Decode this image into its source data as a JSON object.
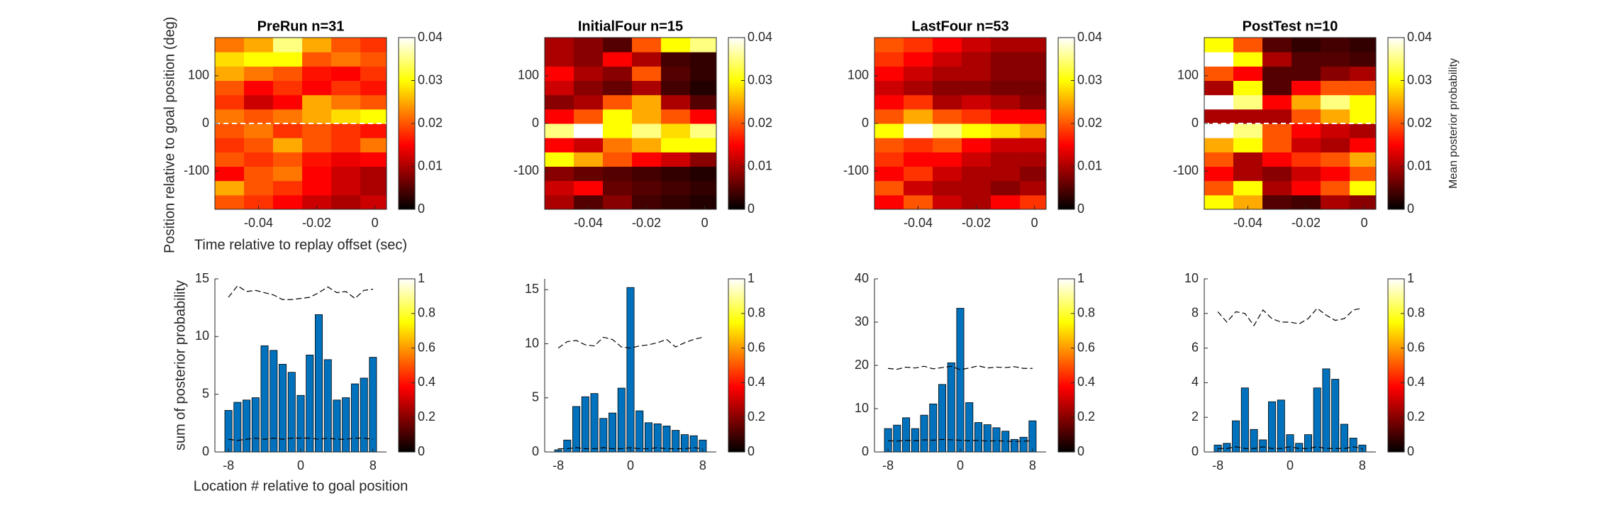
{
  "chart_data": [
    {
      "type": "heatmap",
      "title": "PreRun n=31",
      "xlabel": "Time relative to replay offset (sec)",
      "ylabel": "Position relative to goal position (deg)",
      "xlim": [
        -0.055,
        0.004
      ],
      "ylim": [
        -180,
        180
      ],
      "xticks": [
        -0.04,
        -0.02,
        0
      ],
      "yticks": [
        -100,
        0,
        100
      ],
      "reference_line": 0,
      "x": [
        -0.05,
        -0.04,
        -0.03,
        -0.02,
        -0.01,
        0
      ],
      "y": [
        -165,
        -135,
        -105,
        -75,
        -45,
        -15,
        15,
        45,
        75,
        105,
        135,
        165
      ],
      "z": [
        [
          0.02,
          0.018,
          0.015,
          0.012,
          0.01,
          0.012
        ],
        [
          0.025,
          0.02,
          0.018,
          0.015,
          0.012,
          0.01
        ],
        [
          0.015,
          0.02,
          0.022,
          0.015,
          0.012,
          0.01
        ],
        [
          0.02,
          0.018,
          0.02,
          0.016,
          0.014,
          0.015
        ],
        [
          0.018,
          0.02,
          0.025,
          0.02,
          0.018,
          0.022
        ],
        [
          0.02,
          0.022,
          0.018,
          0.02,
          0.018,
          0.016
        ],
        [
          0.022,
          0.02,
          0.022,
          0.025,
          0.028,
          0.03
        ],
        [
          0.018,
          0.012,
          0.015,
          0.025,
          0.022,
          0.02
        ],
        [
          0.02,
          0.015,
          0.018,
          0.015,
          0.018,
          0.016
        ],
        [
          0.025,
          0.022,
          0.02,
          0.016,
          0.015,
          0.018
        ],
        [
          0.028,
          0.03,
          0.03,
          0.02,
          0.022,
          0.02
        ],
        [
          0.022,
          0.025,
          0.035,
          0.025,
          0.02,
          0.018
        ]
      ],
      "zlim": [
        0,
        0.04
      ],
      "zticks": [
        0,
        0.01,
        0.02,
        0.03,
        0.04
      ]
    },
    {
      "type": "heatmap",
      "title": "InitialFour n=15",
      "xlim": [
        -0.055,
        0.004
      ],
      "ylim": [
        -180,
        180
      ],
      "xticks": [
        -0.04,
        -0.02,
        0
      ],
      "yticks": [
        -100,
        0,
        100
      ],
      "x": [
        -0.05,
        -0.04,
        -0.03,
        -0.02,
        -0.01,
        0
      ],
      "y": [
        -165,
        -135,
        -105,
        -75,
        -45,
        -15,
        15,
        45,
        75,
        105,
        135,
        165
      ],
      "z": [
        [
          0.01,
          0.005,
          0.008,
          0.004,
          0.003,
          0.002
        ],
        [
          0.012,
          0.015,
          0.006,
          0.005,
          0.004,
          0.003
        ],
        [
          0.008,
          0.006,
          0.005,
          0.004,
          0.003,
          0.002
        ],
        [
          0.03,
          0.025,
          0.02,
          0.015,
          0.012,
          0.008
        ],
        [
          0.015,
          0.012,
          0.022,
          0.025,
          0.03,
          0.03
        ],
        [
          0.035,
          0.04,
          0.03,
          0.035,
          0.028,
          0.035
        ],
        [
          0.015,
          0.02,
          0.03,
          0.025,
          0.02,
          0.015
        ],
        [
          0.008,
          0.01,
          0.02,
          0.025,
          0.01,
          0.005
        ],
        [
          0.012,
          0.008,
          0.006,
          0.01,
          0.004,
          0.002
        ],
        [
          0.015,
          0.01,
          0.008,
          0.02,
          0.005,
          0.003
        ],
        [
          0.01,
          0.008,
          0.015,
          0.01,
          0.004,
          0.003
        ],
        [
          0.01,
          0.008,
          0.005,
          0.02,
          0.03,
          0.035
        ]
      ],
      "zlim": [
        0,
        0.04
      ],
      "zticks": [
        0,
        0.01,
        0.02,
        0.03,
        0.04
      ]
    },
    {
      "type": "heatmap",
      "title": "LastFour n=53",
      "xlim": [
        -0.055,
        0.004
      ],
      "ylim": [
        -180,
        180
      ],
      "xticks": [
        -0.04,
        -0.02,
        0
      ],
      "yticks": [
        -100,
        0,
        100
      ],
      "x": [
        -0.05,
        -0.04,
        -0.03,
        -0.02,
        -0.01,
        0
      ],
      "y": [
        -165,
        -135,
        -105,
        -75,
        -45,
        -15,
        15,
        45,
        75,
        105,
        135,
        165
      ],
      "z": [
        [
          0.015,
          0.02,
          0.012,
          0.01,
          0.015,
          0.018
        ],
        [
          0.02,
          0.012,
          0.01,
          0.01,
          0.008,
          0.01
        ],
        [
          0.015,
          0.018,
          0.012,
          0.01,
          0.01,
          0.008
        ],
        [
          0.018,
          0.015,
          0.015,
          0.012,
          0.01,
          0.01
        ],
        [
          0.02,
          0.018,
          0.02,
          0.015,
          0.012,
          0.012
        ],
        [
          0.03,
          0.04,
          0.035,
          0.03,
          0.028,
          0.025
        ],
        [
          0.02,
          0.025,
          0.02,
          0.018,
          0.015,
          0.015
        ],
        [
          0.015,
          0.018,
          0.01,
          0.012,
          0.01,
          0.008
        ],
        [
          0.012,
          0.01,
          0.008,
          0.008,
          0.007,
          0.007
        ],
        [
          0.015,
          0.012,
          0.01,
          0.01,
          0.008,
          0.008
        ],
        [
          0.018,
          0.015,
          0.012,
          0.01,
          0.008,
          0.008
        ],
        [
          0.02,
          0.018,
          0.015,
          0.012,
          0.01,
          0.01
        ]
      ],
      "zlim": [
        0,
        0.04
      ],
      "zticks": [
        0,
        0.01,
        0.02,
        0.03,
        0.04
      ]
    },
    {
      "type": "heatmap",
      "title": "PostTest n=10",
      "colorbar_label": "Mean posterior probability",
      "xlim": [
        -0.055,
        0.004
      ],
      "ylim": [
        -180,
        180
      ],
      "xticks": [
        -0.04,
        -0.02,
        0
      ],
      "yticks": [
        -100,
        0,
        100
      ],
      "reference_line": 0,
      "x": [
        -0.05,
        -0.04,
        -0.03,
        -0.02,
        -0.01,
        0
      ],
      "y": [
        -165,
        -135,
        -105,
        -75,
        -45,
        -15,
        15,
        45,
        75,
        105,
        135,
        165
      ],
      "z": [
        [
          0.03,
          0.025,
          0.005,
          0.004,
          0.01,
          0.008
        ],
        [
          0.02,
          0.03,
          0.01,
          0.015,
          0.02,
          0.03
        ],
        [
          0.015,
          0.01,
          0.008,
          0.012,
          0.015,
          0.02
        ],
        [
          0.02,
          0.01,
          0.015,
          0.018,
          0.02,
          0.025
        ],
        [
          0.025,
          0.03,
          0.02,
          0.012,
          0.01,
          0.015
        ],
        [
          0.04,
          0.035,
          0.02,
          0.015,
          0.012,
          0.01
        ],
        [
          0.01,
          0.01,
          0.01,
          0.02,
          0.025,
          0.03
        ],
        [
          0.04,
          0.035,
          0.015,
          0.025,
          0.035,
          0.03
        ],
        [
          0.01,
          0.03,
          0.005,
          0.015,
          0.02,
          0.02
        ],
        [
          0.02,
          0.015,
          0.005,
          0.005,
          0.008,
          0.01
        ],
        [
          0.04,
          0.03,
          0.01,
          0.005,
          0.005,
          0.004
        ],
        [
          0.03,
          0.02,
          0.005,
          0.003,
          0.004,
          0.003
        ]
      ],
      "zlim": [
        0,
        0.04
      ],
      "zticks": [
        0,
        0.01,
        0.02,
        0.03,
        0.04
      ]
    },
    {
      "type": "bar",
      "xlabel": "Location # relative to goal position",
      "ylabel": "sum of posterior probability",
      "color": "#0072bd",
      "xlim": [
        -9.5,
        9.5
      ],
      "ylim": [
        0,
        15
      ],
      "xticks": [
        -8,
        0,
        8
      ],
      "yticks": [
        0,
        5,
        10,
        15
      ],
      "x": [
        -8,
        -7,
        -6,
        -5,
        -4,
        -3,
        -2,
        -1,
        0,
        1,
        2,
        3,
        4,
        5,
        6,
        7,
        8
      ],
      "values": [
        3.6,
        4.3,
        4.5,
        4.7,
        9.2,
        8.8,
        7.6,
        6.9,
        4.9,
        8.4,
        11.9,
        8.0,
        4.5,
        4.7,
        5.9,
        6.4,
        8.2
      ],
      "upper": [
        13.4,
        14.4,
        13.9,
        14.0,
        13.8,
        13.6,
        13.2,
        13.2,
        13.3,
        13.4,
        13.8,
        14.3,
        13.8,
        13.9,
        13.3,
        14.0,
        14.1
      ],
      "lower": [
        1.1,
        1.0,
        1.1,
        1.2,
        1.1,
        1.2,
        1.1,
        1.2,
        1.2,
        1.2,
        1.1,
        1.2,
        1.1,
        1.1,
        1.2,
        1.2,
        1.1
      ],
      "clim": [
        0,
        1
      ],
      "cticks": [
        0,
        0.2,
        0.4,
        0.6,
        0.8,
        1
      ]
    },
    {
      "type": "bar",
      "color": "#0072bd",
      "xlim": [
        -9.5,
        9.5
      ],
      "ylim": [
        0,
        16
      ],
      "xticks": [
        -8,
        0,
        8
      ],
      "yticks": [
        0,
        5,
        10,
        15
      ],
      "x": [
        -8,
        -7,
        -6,
        -5,
        -4,
        -3,
        -2,
        -1,
        0,
        1,
        2,
        3,
        4,
        5,
        6,
        7,
        8
      ],
      "values": [
        0.2,
        1.1,
        4.2,
        5.1,
        5.4,
        3.1,
        3.6,
        5.9,
        15.2,
        3.8,
        2.7,
        2.6,
        2.4,
        2.0,
        1.6,
        1.5,
        1.1
      ],
      "upper": [
        9.6,
        10.2,
        10.3,
        9.9,
        9.8,
        10.6,
        10.4,
        9.7,
        9.6,
        9.8,
        9.9,
        10.1,
        10.4,
        9.7,
        10.1,
        10.4,
        10.6
      ],
      "lower": [
        0.3,
        0.3,
        0.4,
        0.3,
        0.3,
        0.4,
        0.3,
        0.3,
        0.4,
        0.3,
        0.3,
        0.4,
        0.3,
        0.3,
        0.3,
        0.4,
        0.3
      ],
      "clim": [
        0,
        1
      ],
      "cticks": [
        0,
        0.2,
        0.4,
        0.6,
        0.8,
        1
      ]
    },
    {
      "type": "bar",
      "color": "#0072bd",
      "xlim": [
        -9.5,
        9.5
      ],
      "ylim": [
        0,
        40
      ],
      "xticks": [
        -8,
        0,
        8
      ],
      "yticks": [
        0,
        10,
        20,
        30,
        40
      ],
      "x": [
        -8,
        -7,
        -6,
        -5,
        -4,
        -3,
        -2,
        -1,
        0,
        1,
        2,
        3,
        4,
        5,
        6,
        7,
        8
      ],
      "values": [
        5.4,
        6.2,
        7.9,
        5.4,
        8.5,
        11.1,
        15.6,
        20.6,
        33.2,
        11.4,
        6.8,
        6.3,
        5.6,
        4.8,
        2.9,
        3.4,
        7.2
      ],
      "upper": [
        19.3,
        19.1,
        19.6,
        19.4,
        19.8,
        19.2,
        19.5,
        19.8,
        19.0,
        19.4,
        19.9,
        19.4,
        19.6,
        19.5,
        19.7,
        19.3,
        19.3
      ],
      "lower": [
        2.6,
        2.5,
        2.7,
        2.6,
        2.8,
        2.7,
        2.9,
        2.8,
        2.7,
        2.6,
        2.7,
        2.5,
        2.6,
        2.5,
        2.4,
        2.5,
        2.6
      ],
      "clim": [
        0,
        1
      ],
      "cticks": [
        0,
        0.2,
        0.4,
        0.6,
        0.8,
        1
      ]
    },
    {
      "type": "bar",
      "color": "#0072bd",
      "xlim": [
        -9.5,
        9.5
      ],
      "ylim": [
        0,
        10
      ],
      "xticks": [
        -8,
        0,
        8
      ],
      "yticks": [
        0,
        2,
        4,
        6,
        8,
        10
      ],
      "x": [
        -8,
        -7,
        -6,
        -5,
        -4,
        -3,
        -2,
        -1,
        0,
        1,
        2,
        3,
        4,
        5,
        6,
        7,
        8
      ],
      "values": [
        0.4,
        0.5,
        1.8,
        3.7,
        1.3,
        0.7,
        2.9,
        3.0,
        1.0,
        0.5,
        1.0,
        3.7,
        4.8,
        4.2,
        1.6,
        0.8,
        0.4
      ],
      "upper": [
        8.1,
        7.5,
        8.1,
        8.0,
        7.3,
        8.2,
        7.7,
        7.5,
        7.5,
        7.4,
        7.7,
        8.3,
        7.9,
        7.6,
        7.7,
        8.2,
        8.3
      ],
      "lower": [
        0.2,
        0.2,
        0.3,
        0.2,
        0.2,
        0.3,
        0.2,
        0.2,
        0.3,
        0.2,
        0.2,
        0.3,
        0.2,
        0.2,
        0.2,
        0.3,
        0.2
      ],
      "clim": [
        0,
        1
      ],
      "cticks": [
        0,
        0.2,
        0.4,
        0.6,
        0.8,
        1
      ]
    }
  ]
}
